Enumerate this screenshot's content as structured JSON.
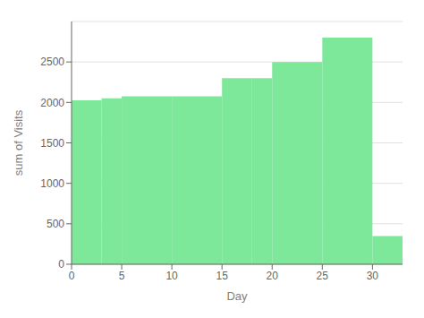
{
  "chart_data": {
    "type": "histogram",
    "bins": [
      0,
      3,
      5,
      10,
      15,
      18,
      20,
      25,
      30,
      33
    ],
    "values": [
      2025,
      2050,
      2075,
      2075,
      2300,
      2300,
      2500,
      2800,
      350
    ],
    "color": "#7ee89a",
    "xlabel": "Day",
    "ylabel": "sum of Visits",
    "xlim": [
      0,
      33
    ],
    "ylim": [
      0,
      3000
    ],
    "xticks": [
      0,
      5,
      10,
      15,
      20,
      25,
      30
    ],
    "yticks": [
      0,
      500,
      1000,
      1500,
      2000,
      2500
    ],
    "grid": true
  }
}
